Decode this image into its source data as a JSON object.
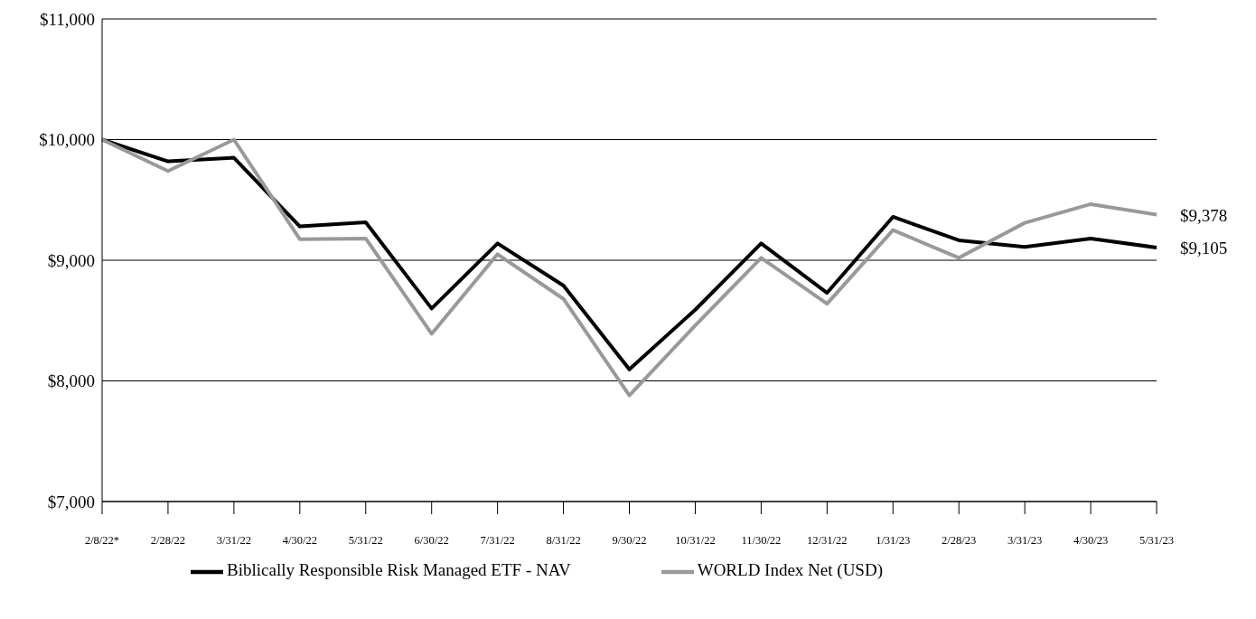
{
  "chart_data": {
    "type": "line",
    "categories": [
      "2/8/22*",
      "2/28/22",
      "3/31/22",
      "4/30/22",
      "5/31/22",
      "6/30/22",
      "7/31/22",
      "8/31/22",
      "9/30/22",
      "10/31/22",
      "11/30/22",
      "12/31/22",
      "1/31/23",
      "2/28/23",
      "3/31/23",
      "4/30/23",
      "5/31/23"
    ],
    "series": [
      {
        "name": "Biblically Responsible Risk Managed ETF - NAV",
        "color": "#000000",
        "values": [
          10000,
          9820,
          9850,
          9280,
          9315,
          8600,
          9140,
          8790,
          8095,
          8590,
          9140,
          8730,
          9360,
          9165,
          9110,
          9180,
          9105
        ],
        "value_labels": [
          null,
          null,
          null,
          null,
          null,
          null,
          null,
          null,
          null,
          null,
          null,
          null,
          null,
          null,
          null,
          null,
          "$9,105"
        ]
      },
      {
        "name": "WORLD Index Net (USD)",
        "color": "#999999",
        "values": [
          10000,
          9740,
          10000,
          9175,
          9180,
          8390,
          9050,
          8680,
          7880,
          8460,
          9020,
          8640,
          9250,
          9020,
          9310,
          9465,
          9378
        ],
        "value_labels": [
          null,
          null,
          null,
          null,
          null,
          null,
          null,
          null,
          null,
          null,
          null,
          null,
          null,
          null,
          null,
          null,
          "$9,378"
        ]
      }
    ],
    "ylim": [
      7000,
      11000
    ],
    "yticks": [
      {
        "value": 7000,
        "label": "$7,000"
      },
      {
        "value": 8000,
        "label": "$8,000"
      },
      {
        "value": 9000,
        "label": "$9,000"
      },
      {
        "value": 10000,
        "label": "$10,000"
      },
      {
        "value": 11000,
        "label": "$11,000"
      }
    ],
    "grid": "y",
    "legend": "bottom",
    "marker": "none",
    "line_style": "solid"
  }
}
